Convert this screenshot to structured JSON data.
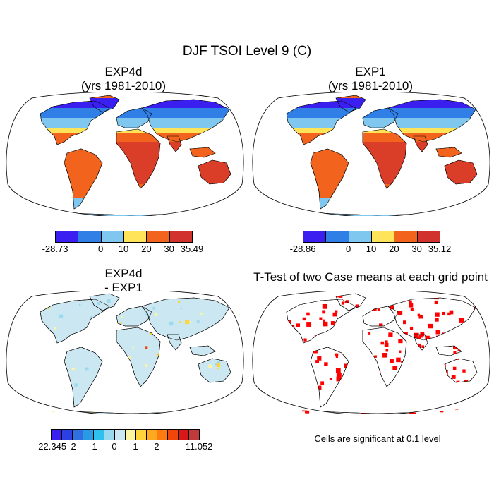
{
  "title": "DJF TSOI Level 9 (C)",
  "panels": [
    {
      "id": "exp4d",
      "title_line1": "EXP4d",
      "title_line2": "(yrs 1981-2010)"
    },
    {
      "id": "exp1",
      "title_line1": "EXP1",
      "title_line2": "(yrs 1981-2010)"
    },
    {
      "id": "diff",
      "title_line1": "EXP4d",
      "title_line2": "- EXP1"
    },
    {
      "id": "ttest",
      "title_line1": "T-Test of two Case means at each grid point"
    }
  ],
  "note": "Cells are significant at 0.1 level",
  "colorbars": [
    {
      "id": "exp4d",
      "colors": [
        "#3b1ff0",
        "#2f7fe6",
        "#7fc7ef",
        "#ffe45a",
        "#f2641e",
        "#d1322e"
      ],
      "labels": [
        "-28.73",
        "",
        "0",
        "10",
        "20",
        "30",
        "35.49"
      ]
    },
    {
      "id": "exp1",
      "colors": [
        "#3b1ff0",
        "#2f7fe6",
        "#7fc7ef",
        "#ffe45a",
        "#f2641e",
        "#d1322e"
      ],
      "labels": [
        "-28.86",
        "",
        "0",
        "10",
        "20",
        "30",
        "35.12"
      ]
    },
    {
      "id": "diff",
      "colors": [
        "#3b1ff0",
        "#2c3fe2",
        "#2f6fe2",
        "#2b9ae6",
        "#30c0ee",
        "#9ad9f0",
        "#cbe7f2",
        "#fbf4a0",
        "#ffd33a",
        "#ffa820",
        "#ff7a10",
        "#f0460a",
        "#d81818",
        "#c03a3a"
      ],
      "labels": [
        "-22.345",
        "",
        "-2",
        "",
        "-1",
        "",
        "0",
        "",
        "1",
        "",
        "2",
        "",
        "",
        "",
        "11.052"
      ]
    }
  ],
  "map_colors": {
    "exp": {
      "polar": "#3b1ff0",
      "cold": "#2f7fe6",
      "cool": "#7fc7ef",
      "mild": "#ffe45a",
      "warm": "#f2641e",
      "hot": "#d1322e"
    },
    "diff": {
      "land": "#cbe7f2",
      "cool": "#9ad9f0",
      "warm": "#fbf4a0",
      "warmer": "#ffd33a",
      "hot": "#f0460a"
    },
    "ttest": {
      "significant": "#ff0000"
    }
  }
}
